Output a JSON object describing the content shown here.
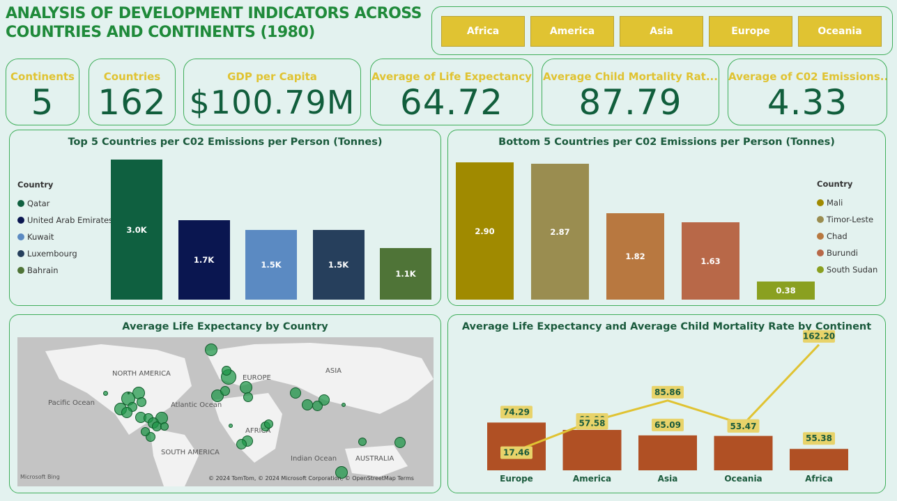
{
  "title": "ANALYSIS OF DEVELOPMENT INDICATORS ACROSS COUNTRIES AND CONTINENTS (1980)",
  "slicer": [
    "Africa",
    "America",
    "Asia",
    "Europe",
    "Oceania"
  ],
  "kpis": [
    {
      "label": "Continents",
      "value": "5"
    },
    {
      "label": "Countries",
      "value": "162"
    },
    {
      "label": "GDP per Capita",
      "value": "$100.79M"
    },
    {
      "label": "Average of Life Expectancy",
      "value": "64.72"
    },
    {
      "label": "Average Child Mortality Rat...",
      "value": "87.79"
    },
    {
      "label": "Average of C02 Emissions..",
      "value": "4.33"
    }
  ],
  "chart_data": [
    {
      "type": "bar",
      "title": "Top 5 Countries per C02 Emissions per Person (Tonnes)",
      "legend_title": "Country",
      "categories": [
        "Qatar",
        "United Arab Emirates",
        "Kuwait",
        "Luxembourg",
        "Bahrain"
      ],
      "values": [
        3000,
        1700,
        1500,
        1500,
        1100
      ],
      "labels": [
        "3.0K",
        "1.7K",
        "1.5K",
        "1.5K",
        "1.1K"
      ],
      "colors": [
        "#0f6040",
        "#0a1650",
        "#5b8ac2",
        "#263f5c",
        "#4f7437"
      ],
      "ylim": [
        0,
        3000
      ],
      "legend_position": "left"
    },
    {
      "type": "bar",
      "title": "Bottom 5 Countries per C02 Emissions per Person (Tonnes)",
      "legend_title": "Country",
      "categories": [
        "Mali",
        "Timor-Leste",
        "Chad",
        "Burundi",
        "South Sudan"
      ],
      "values": [
        2.9,
        2.87,
        1.82,
        1.63,
        0.38
      ],
      "labels": [
        "2.90",
        "2.87",
        "1.82",
        "1.63",
        "0.38"
      ],
      "colors": [
        "#a08a00",
        "#9a8d50",
        "#b87840",
        "#b86848",
        "#8aa020"
      ],
      "ylim": [
        0,
        2.9
      ],
      "legend_position": "right"
    },
    {
      "type": "bar",
      "title": "Average Life Expectancy and Average Child Mortality Rate by Continent",
      "categories": [
        "Europe",
        "America",
        "Asia",
        "Oceania",
        "Africa"
      ],
      "series": [
        {
          "values": [
            74.29,
            69.0,
            65.09,
            64.71,
            55.38
          ],
          "color": "#b05024",
          "kind": "bar"
        },
        {
          "values": [
            17.46,
            57.58,
            85.86,
            53.47,
            162.2
          ],
          "color": "#e0c332",
          "kind": "line"
        }
      ]
    }
  ],
  "map": {
    "title": "Average Life Expectancy by Country",
    "labels": [
      "NORTH AMERICA",
      "EUROPE",
      "ASIA",
      "Pacific Ocean",
      "Atlantic Ocean",
      "AFRICA",
      "SOUTH AMERICA",
      "Indian Ocean",
      "AUSTRALIA"
    ],
    "attribution": "© 2024 TomTom, © 2024 Microsoft Corporation, © OpenStreetMap  Terms",
    "provider": "Microsoft Bing"
  }
}
